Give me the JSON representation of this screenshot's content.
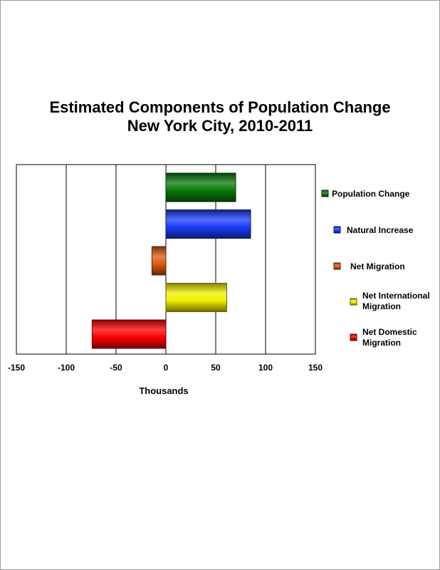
{
  "chart_data": {
    "type": "bar",
    "orientation": "horizontal",
    "title_lines": [
      "Estimated Components of Population Change",
      "New York City, 2010-2011"
    ],
    "xlabel": "Thousands",
    "ylabel": "",
    "xlim": [
      -150,
      150
    ],
    "x_ticks": [
      -150,
      -100,
      -50,
      0,
      50,
      100,
      150
    ],
    "grid": "vertical lines",
    "legend_position": "right",
    "categories": [
      "Population Change",
      "Natural Increase",
      "Net Migration",
      "Net International Migration",
      "Net Domestic Migration"
    ],
    "legend": [
      {
        "lines": [
          "Population Change"
        ],
        "color": "#0a7a0a"
      },
      {
        "lines": [
          "Natural Increase"
        ],
        "color": "#1a3cff"
      },
      {
        "lines": [
          "Net Migration"
        ],
        "color": "#e05a10"
      },
      {
        "lines": [
          "Net International",
          "Migration"
        ],
        "color": "#f2f200"
      },
      {
        "lines": [
          "Net Domestic",
          "Migration"
        ],
        "color": "#ff0000"
      }
    ],
    "values": [
      70,
      85,
      -14,
      61,
      -74
    ],
    "colors": [
      "#0a7a0a",
      "#1a3cff",
      "#e05a10",
      "#f2f200",
      "#ff0000"
    ]
  }
}
